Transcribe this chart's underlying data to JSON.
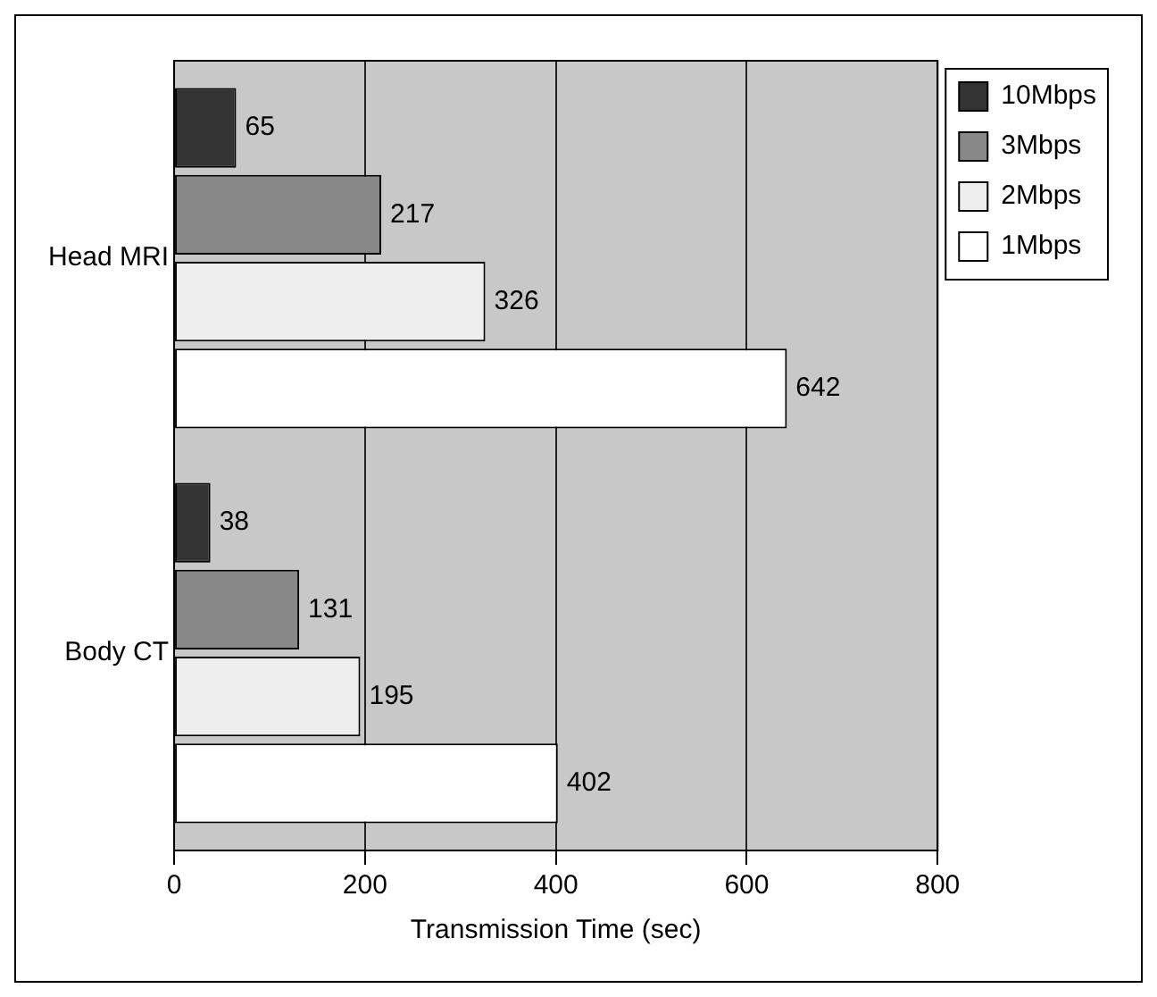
{
  "chart_data": {
    "type": "bar",
    "orientation": "horizontal",
    "xlabel": "Transmission Time (sec)",
    "categories": [
      "Head MRI",
      "Body CT"
    ],
    "series": [
      {
        "name": "10Mbps",
        "color": "#333333",
        "values": [
          65,
          38
        ]
      },
      {
        "name": "3Mbps",
        "color": "#888888",
        "values": [
          217,
          131
        ]
      },
      {
        "name": "2Mbps",
        "color": "#eeeeee",
        "values": [
          326,
          195
        ]
      },
      {
        "name": "1Mbps",
        "color": "#ffffff",
        "values": [
          642,
          402
        ]
      }
    ],
    "xlim": [
      0,
      800
    ],
    "xticks": [
      0,
      200,
      400,
      600,
      800
    ],
    "grid": "x",
    "legend": "top right",
    "data_labels": true
  }
}
